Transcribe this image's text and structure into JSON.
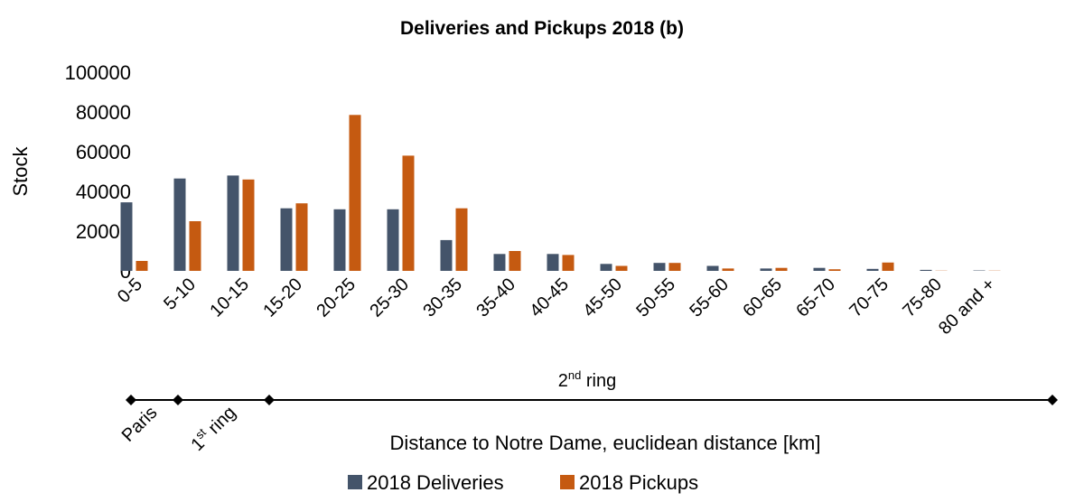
{
  "chart_data": {
    "type": "bar",
    "title": "Deliveries and Pickups 2018 (b)",
    "x_label": "Distance to Notre Dame, euclidean distance [km]",
    "y_label": "Stock",
    "categories": [
      "0-5",
      "5-10",
      "10-15",
      "15-20",
      "20-25",
      "25-30",
      "30-35",
      "35-40",
      "40-45",
      "45-50",
      "50-55",
      "55-60",
      "60-65",
      "65-70",
      "70-75",
      "75-80",
      "80 and +"
    ],
    "series": [
      {
        "name": "2018 Deliveries",
        "color": "#44546a",
        "values": [
          34500,
          46500,
          48000,
          31500,
          31000,
          31000,
          15500,
          8500,
          8500,
          3500,
          4000,
          2500,
          1200,
          1500,
          1000,
          500,
          200
        ]
      },
      {
        "name": "2018 Pickups",
        "color": "#c55a11",
        "values": [
          5000,
          25000,
          46000,
          34000,
          78500,
          58000,
          31500,
          10000,
          8000,
          2500,
          4000,
          1200,
          1500,
          800,
          4200,
          100,
          100
        ]
      }
    ],
    "ylim": [
      0,
      100000
    ],
    "yticks": [
      0,
      20000,
      40000,
      60000,
      80000,
      100000
    ],
    "grid": false,
    "zones": {
      "paris": "Paris",
      "ring1": {
        "base": "1",
        "sup": "st",
        "rest": " ring"
      },
      "ring2": {
        "base": "2",
        "sup": "nd",
        "rest": " ring"
      }
    }
  }
}
